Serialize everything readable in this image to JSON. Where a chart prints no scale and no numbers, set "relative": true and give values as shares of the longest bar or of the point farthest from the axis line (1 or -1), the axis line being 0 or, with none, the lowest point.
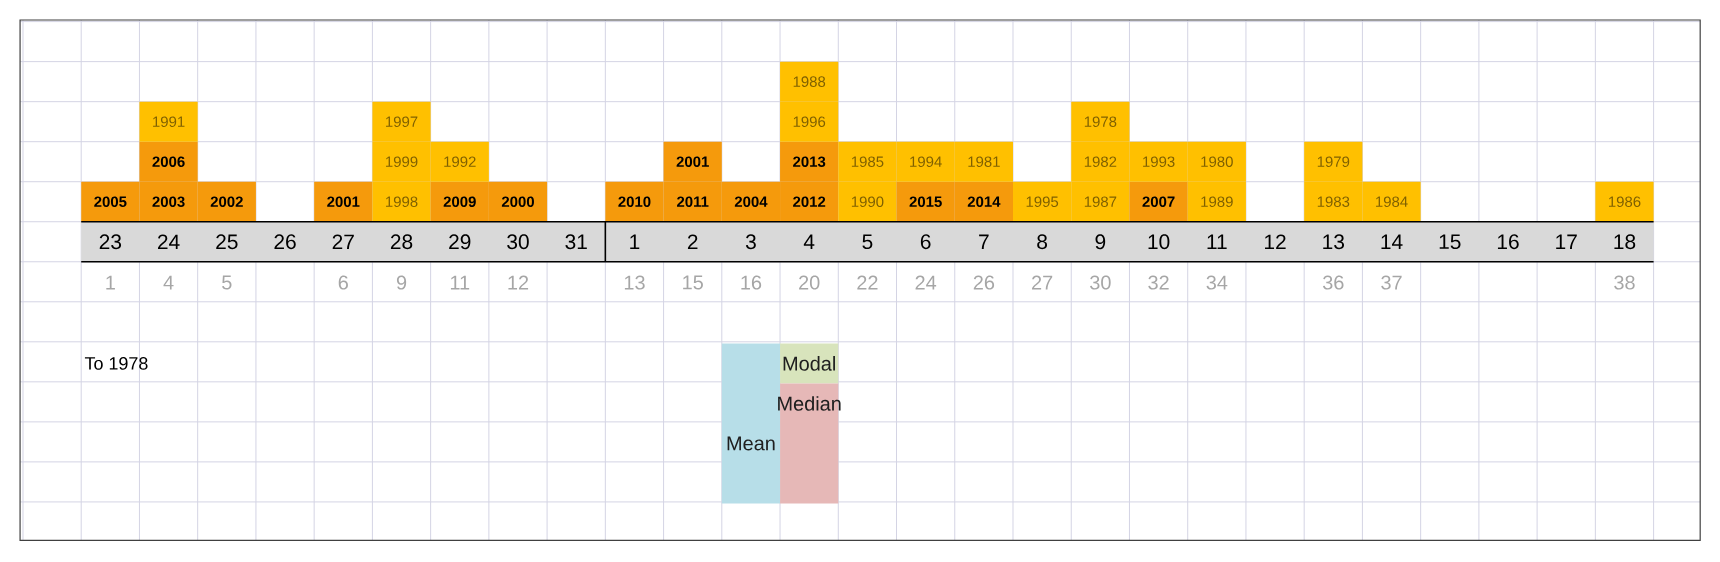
{
  "chart_data": {
    "type": "bar",
    "relative": true,
    "stacked": true,
    "grid": true,
    "categories": [
      "23",
      "24",
      "25",
      "26",
      "27",
      "28",
      "29",
      "30",
      "31",
      "1",
      "2",
      "3",
      "4",
      "5",
      "6",
      "7",
      "8",
      "9",
      "10",
      "11",
      "12",
      "13",
      "14",
      "15",
      "16",
      "17",
      "18"
    ],
    "series": [
      {
        "values": [
          0.25,
          0.25,
          0.25,
          null,
          0.25,
          0.25,
          0.25,
          0.25,
          null,
          0.25,
          0.25,
          0.25,
          0.25,
          0.25,
          0.25,
          0.25,
          0.25,
          0.25,
          0.25,
          0.25,
          null,
          0.25,
          0.25,
          null,
          null,
          null,
          0.25
        ],
        "colors": [
          "#f59a0c",
          "#f59a0c",
          "#f59a0c",
          null,
          "#f59a0c",
          "#ffc000",
          "#f59a0c",
          "#f59a0c",
          null,
          "#f59a0c",
          "#f59a0c",
          "#f59a0c",
          "#f59a0c",
          "#ffc000",
          "#f59a0c",
          "#f59a0c",
          "#ffc000",
          "#ffc000",
          "#f59a0c",
          "#ffc000",
          null,
          "#ffc000",
          "#ffc000",
          null,
          null,
          null,
          "#ffc000"
        ]
      },
      {
        "values": [
          null,
          0.25,
          null,
          null,
          null,
          0.25,
          0.25,
          null,
          null,
          null,
          0.25,
          null,
          0.25,
          0.25,
          0.25,
          0.25,
          null,
          0.25,
          0.25,
          0.25,
          null,
          0.25,
          null,
          null,
          null,
          null,
          null
        ],
        "colors": [
          null,
          "#f59a0c",
          null,
          null,
          null,
          "#ffc000",
          "#ffc000",
          null,
          null,
          null,
          "#f59a0c",
          null,
          "#f59a0c",
          "#ffc000",
          "#ffc000",
          "#ffc000",
          null,
          "#ffc000",
          "#ffc000",
          "#ffc000",
          null,
          "#ffc000",
          null,
          null,
          null,
          null,
          null
        ]
      },
      {
        "values": [
          null,
          0.25,
          null,
          null,
          null,
          0.25,
          null,
          null,
          null,
          null,
          null,
          null,
          0.25,
          null,
          null,
          null,
          null,
          0.25,
          null,
          null,
          null,
          null,
          null,
          null,
          null,
          null,
          null
        ],
        "colors": [
          null,
          "#ffc000",
          null,
          null,
          null,
          "#ffc000",
          null,
          null,
          null,
          null,
          null,
          null,
          "#ffc000",
          null,
          null,
          null,
          null,
          "#ffc000",
          null,
          null,
          null,
          null,
          null,
          null,
          null,
          null,
          null
        ]
      },
      {
        "values": [
          null,
          null,
          null,
          null,
          null,
          null,
          null,
          null,
          null,
          null,
          null,
          null,
          0.25,
          null,
          null,
          null,
          null,
          null,
          null,
          null,
          null,
          null,
          null,
          null,
          null,
          null,
          null
        ],
        "colors": [
          null,
          null,
          null,
          null,
          null,
          null,
          null,
          null,
          null,
          null,
          null,
          null,
          "#ffc000",
          null,
          null,
          null,
          null,
          null,
          null,
          null,
          null,
          null,
          null,
          null,
          null,
          null,
          null
        ]
      }
    ],
    "annotations": [
      "2005",
      "2003",
      "2006",
      "1991",
      "2002",
      "2001",
      "1998",
      "1999",
      "1997",
      "2009",
      "1992",
      "2000",
      "2010",
      "2011",
      "2001",
      "2004",
      "2012",
      "2013",
      "1996",
      "1988",
      "1990",
      "1985",
      "2015",
      "1994",
      "2014",
      "1981",
      "1995",
      "1987",
      "1982",
      "1978",
      "2007",
      "1993",
      "1989",
      "1980",
      "1983",
      "1979",
      "1984",
      "1986",
      "1",
      "4",
      "5",
      "6",
      "9",
      "11",
      "12",
      "13",
      "15",
      "16",
      "20",
      "22",
      "24",
      "26",
      "27",
      "30",
      "32",
      "34",
      "36",
      "37",
      "38",
      "To 1978"
    ],
    "ref_lines": [
      {
        "axis": "x",
        "value": "4",
        "label": "Modal",
        "color": "#d8e4bc"
      },
      {
        "axis": "x",
        "value": "4",
        "label": "Median",
        "color": "#e6b8b7"
      },
      {
        "axis": "x",
        "value": "3",
        "label": "Mean",
        "color": "#b7dee8"
      }
    ]
  }
}
